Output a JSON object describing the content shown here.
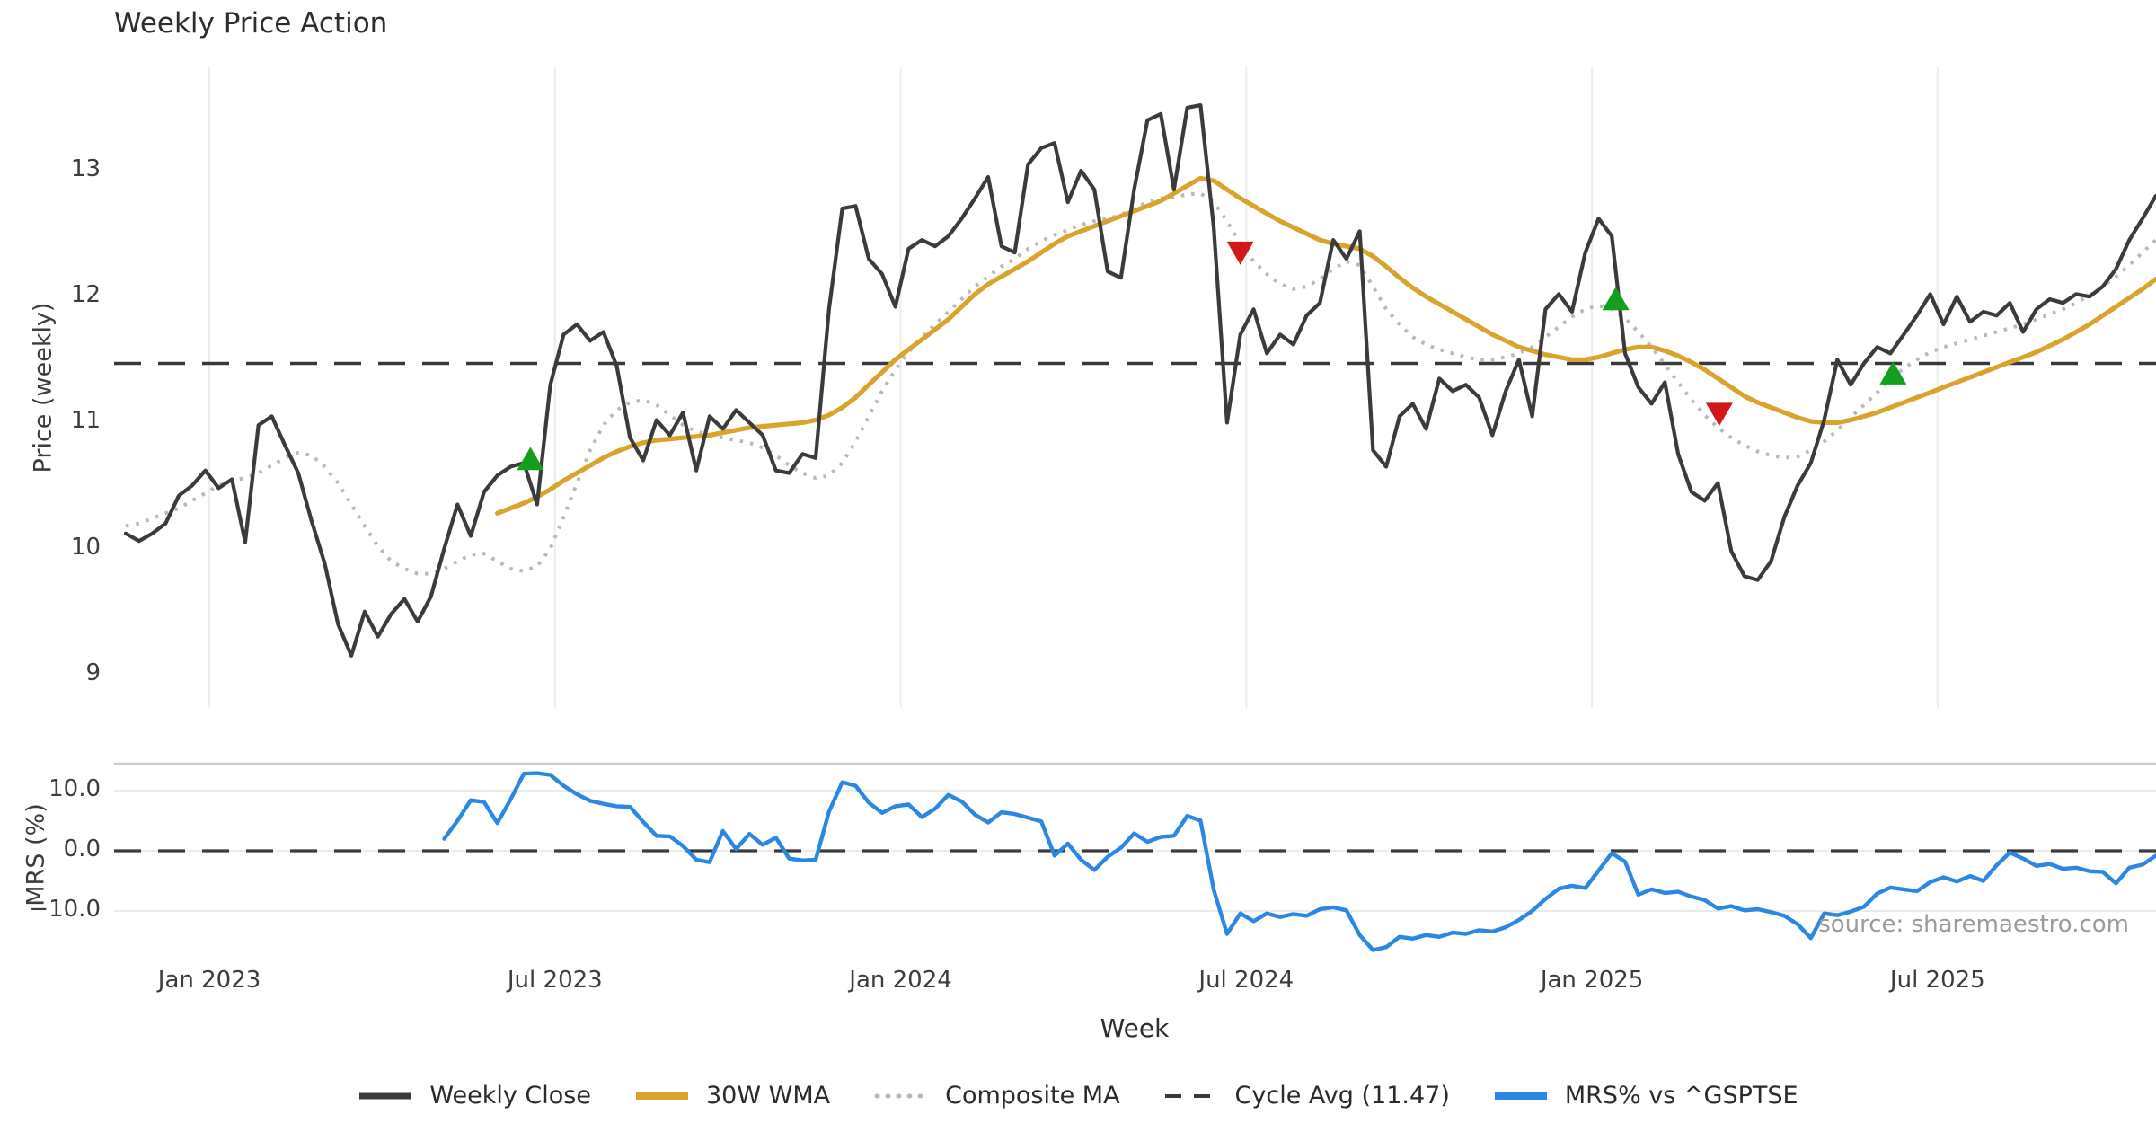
{
  "title": "Weekly Price Action",
  "xlabel": "Week",
  "source": "source: sharemaestro.com",
  "top_panel": {
    "ylabel": "Price (weekly)"
  },
  "bottom_panel": {
    "ylabel": "MRS (%)"
  },
  "legend": {
    "items": [
      {
        "label": "Weekly Close",
        "color": "#3b3b3b",
        "width": 7,
        "dash": "",
        "cap": "butt"
      },
      {
        "label": "30W WMA",
        "color": "#d9a42d",
        "width": 8,
        "dash": "",
        "cap": "butt"
      },
      {
        "label": "Composite MA",
        "color": "#b9b9b9",
        "width": 5,
        "dash": "1 11",
        "cap": "round"
      },
      {
        "label": "Cycle Avg (11.47)",
        "color": "#3a3a3a",
        "width": 4,
        "dash": "18 14",
        "cap": "butt"
      },
      {
        "label": "MRS% vs ^GSPTSE",
        "color": "#2c87e2",
        "width": 8,
        "dash": "",
        "cap": "butt"
      }
    ]
  },
  "chart_data": {
    "type": "line",
    "title": "Weekly Price Action",
    "xlabel": "Week",
    "panels": [
      {
        "ylabel": "Price (weekly)",
        "yticks": [
          9,
          10,
          11,
          12,
          13
        ],
        "ylim": [
          8.75,
          13.82
        ],
        "grid": "vertical"
      },
      {
        "ylabel": "MRS (%)",
        "yticks": [
          10.0,
          0.0,
          -10.0
        ],
        "ylim": [
          -17.0,
          14.5
        ],
        "grid": "horizontal"
      }
    ],
    "cycle_avg": 11.47,
    "mrs_zero_line": 0.0,
    "colors": {
      "close": "#3b3b3b",
      "wma": "#d9a42d",
      "composite": "#b9b9b9",
      "cycle": "#3a3a3a",
      "mrs": "#2c87e2",
      "buy": "#139e1e",
      "sell": "#d21717",
      "grid_v": "#ededed",
      "grid_h": "#ebebeb",
      "spine": "#cccccc"
    },
    "xticks": [
      {
        "label": "Jan 2023",
        "week": 6.3
      },
      {
        "label": "Jul 2023",
        "week": 32.35
      },
      {
        "label": "Jan 2024",
        "week": 58.4
      },
      {
        "label": "Jul 2024",
        "week": 84.45
      },
      {
        "label": "Jan 2025",
        "week": 110.5
      },
      {
        "label": "Jul 2025",
        "week": 136.55
      }
    ],
    "series": {
      "weekly_close": {
        "name": "Weekly Close",
        "start_week": 0,
        "values": [
          10.12,
          10.06,
          10.12,
          10.2,
          10.42,
          10.5,
          10.62,
          10.48,
          10.55,
          10.05,
          10.98,
          11.05,
          10.82,
          10.6,
          10.22,
          9.88,
          9.4,
          9.15,
          9.5,
          9.3,
          9.48,
          9.6,
          9.42,
          9.62,
          10.0,
          10.35,
          10.1,
          10.45,
          10.58,
          10.65,
          10.68,
          10.35,
          11.3,
          11.7,
          11.78,
          11.65,
          11.72,
          11.45,
          10.88,
          10.7,
          11.02,
          10.9,
          11.08,
          10.62,
          11.05,
          10.95,
          11.1,
          11.0,
          10.9,
          10.62,
          10.6,
          10.75,
          10.72,
          11.9,
          12.7,
          12.72,
          12.3,
          12.18,
          11.92,
          12.38,
          12.45,
          12.4,
          12.48,
          12.62,
          12.78,
          12.95,
          12.4,
          12.35,
          13.05,
          13.18,
          13.22,
          12.75,
          13.0,
          12.85,
          12.2,
          12.15,
          12.85,
          13.4,
          13.45,
          12.85,
          13.5,
          13.52,
          12.55,
          11.0,
          11.7,
          11.9,
          11.55,
          11.7,
          11.62,
          11.85,
          11.95,
          12.45,
          12.3,
          12.52,
          10.78,
          10.65,
          11.05,
          11.15,
          10.95,
          11.35,
          11.25,
          11.3,
          11.2,
          10.9,
          11.25,
          11.5,
          11.05,
          11.9,
          12.02,
          11.88,
          12.35,
          12.62,
          12.48,
          11.55,
          11.28,
          11.15,
          11.32,
          10.75,
          10.45,
          10.38,
          10.52,
          9.98,
          9.78,
          9.75,
          9.9,
          10.25,
          10.5,
          10.68,
          11.02,
          11.5,
          11.3,
          11.47,
          11.6,
          11.55,
          11.7,
          11.85,
          12.02,
          11.78,
          12.0,
          11.8,
          11.88,
          11.85,
          11.95,
          11.72,
          11.9,
          11.98,
          11.95,
          12.02,
          12.0,
          12.08,
          12.22,
          12.45,
          12.62,
          12.8
        ]
      },
      "wma_30w": {
        "name": "30W WMA",
        "start_week": 28,
        "values": [
          10.28,
          10.32,
          10.36,
          10.41,
          10.47,
          10.54,
          10.6,
          10.66,
          10.72,
          10.77,
          10.81,
          10.84,
          10.86,
          10.87,
          10.88,
          10.89,
          10.9,
          10.92,
          10.94,
          10.96,
          10.97,
          10.98,
          10.99,
          11.0,
          11.02,
          11.06,
          11.12,
          11.2,
          11.3,
          11.4,
          11.5,
          11.58,
          11.66,
          11.74,
          11.82,
          11.92,
          12.02,
          12.1,
          12.16,
          12.22,
          12.28,
          12.35,
          12.42,
          12.48,
          12.52,
          12.56,
          12.6,
          12.64,
          12.68,
          12.72,
          12.76,
          12.82,
          12.88,
          12.94,
          12.92,
          12.85,
          12.78,
          12.72,
          12.66,
          12.6,
          12.55,
          12.5,
          12.45,
          12.42,
          12.4,
          12.38,
          12.32,
          12.24,
          12.15,
          12.07,
          12.0,
          11.94,
          11.88,
          11.82,
          11.76,
          11.7,
          11.65,
          11.6,
          11.57,
          11.54,
          11.52,
          11.5,
          11.5,
          11.52,
          11.55,
          11.58,
          11.6,
          11.6,
          11.57,
          11.53,
          11.48,
          11.42,
          11.35,
          11.28,
          11.21,
          11.16,
          11.12,
          11.08,
          11.04,
          11.01,
          11.0,
          11.0,
          11.02,
          11.05,
          11.08,
          11.12,
          11.16,
          11.2,
          11.24,
          11.28,
          11.32,
          11.36,
          11.4,
          11.44,
          11.48,
          11.52,
          11.56,
          11.61,
          11.66,
          11.72,
          11.78,
          11.85,
          11.92,
          11.99,
          12.06,
          12.14
        ]
      },
      "composite_ma": {
        "name": "Composite MA",
        "start_week": 0,
        "values": [
          10.18,
          10.2,
          10.24,
          10.28,
          10.32,
          10.38,
          10.44,
          10.5,
          10.54,
          10.56,
          10.6,
          10.66,
          10.72,
          10.76,
          10.74,
          10.65,
          10.52,
          10.35,
          10.18,
          10.02,
          9.9,
          9.84,
          9.8,
          9.8,
          9.84,
          9.9,
          9.95,
          9.96,
          9.9,
          9.84,
          9.82,
          9.86,
          10.0,
          10.25,
          10.52,
          10.78,
          10.98,
          11.1,
          11.16,
          11.18,
          11.14,
          11.06,
          10.98,
          10.93,
          10.9,
          10.88,
          10.86,
          10.84,
          10.8,
          10.74,
          10.66,
          10.6,
          10.56,
          10.58,
          10.68,
          10.85,
          11.05,
          11.25,
          11.42,
          11.56,
          11.68,
          11.78,
          11.88,
          11.98,
          12.08,
          12.16,
          12.24,
          12.3,
          12.38,
          12.44,
          12.49,
          12.53,
          12.57,
          12.6,
          12.62,
          12.65,
          12.7,
          12.75,
          12.78,
          12.79,
          12.81,
          12.82,
          12.75,
          12.6,
          12.42,
          12.28,
          12.18,
          12.1,
          12.06,
          12.08,
          12.14,
          12.22,
          12.28,
          12.25,
          12.08,
          11.9,
          11.78,
          11.68,
          11.62,
          11.58,
          11.55,
          11.52,
          11.5,
          11.5,
          11.52,
          11.55,
          11.6,
          11.68,
          11.76,
          11.84,
          11.9,
          11.93,
          11.9,
          11.83,
          11.72,
          11.6,
          11.46,
          11.32,
          11.18,
          11.06,
          10.96,
          10.88,
          10.82,
          10.77,
          10.74,
          10.72,
          10.73,
          10.78,
          10.85,
          10.94,
          11.04,
          11.14,
          11.24,
          11.34,
          11.43,
          11.5,
          11.56,
          11.6,
          11.63,
          11.66,
          11.69,
          11.72,
          11.75,
          11.78,
          11.82,
          11.86,
          11.9,
          11.95,
          12.01,
          12.08,
          12.16,
          12.25,
          12.35,
          12.45
        ]
      },
      "mrs": {
        "name": "MRS% vs ^GSPTSE",
        "start_week": 24,
        "values": [
          2.0,
          5.0,
          8.4,
          8.1,
          4.6,
          8.5,
          12.8,
          12.9,
          12.6,
          10.8,
          9.4,
          8.3,
          7.8,
          7.4,
          7.3,
          4.8,
          2.5,
          2.4,
          0.8,
          -1.5,
          -1.9,
          3.3,
          0.3,
          2.8,
          1.0,
          2.2,
          -1.3,
          -1.6,
          -1.5,
          6.5,
          11.4,
          10.8,
          8.0,
          6.3,
          7.4,
          7.7,
          5.6,
          7.0,
          9.3,
          8.2,
          6.0,
          4.7,
          6.4,
          6.1,
          5.5,
          4.9,
          -0.8,
          1.2,
          -1.5,
          -3.2,
          -1.0,
          0.5,
          2.9,
          1.5,
          2.3,
          2.5,
          5.8,
          5.0,
          -6.5,
          -13.8,
          -10.4,
          -11.7,
          -10.4,
          -11.0,
          -10.5,
          -10.8,
          -9.7,
          -9.4,
          -9.9,
          -14.0,
          -16.5,
          -16.0,
          -14.3,
          -14.6,
          -14.0,
          -14.3,
          -13.6,
          -13.8,
          -13.2,
          -13.4,
          -12.7,
          -11.5,
          -10.0,
          -8.0,
          -6.3,
          -5.8,
          -6.2,
          -3.3,
          -0.4,
          -1.8,
          -7.3,
          -6.4,
          -7.0,
          -6.8,
          -7.6,
          -8.2,
          -9.6,
          -9.2,
          -9.9,
          -9.7,
          -10.2,
          -10.8,
          -12.2,
          -14.5,
          -10.4,
          -10.7,
          -10.1,
          -9.3,
          -7.1,
          -6.1,
          -6.4,
          -6.7,
          -5.2,
          -4.4,
          -5.1,
          -4.2,
          -5.0,
          -2.4,
          -0.3,
          -1.3,
          -2.5,
          -2.2,
          -3.0,
          -2.8,
          -3.4,
          -3.5,
          -5.4,
          -2.8,
          -2.3,
          -0.8
        ]
      }
    },
    "markers": [
      {
        "week": 30.5,
        "value": 10.7,
        "type": "buy"
      },
      {
        "week": 84.0,
        "value": 12.36,
        "type": "sell"
      },
      {
        "week": 112.3,
        "value": 11.97,
        "type": "buy"
      },
      {
        "week": 120.1,
        "value": 11.08,
        "type": "sell"
      },
      {
        "week": 133.2,
        "value": 11.38,
        "type": "buy"
      }
    ]
  }
}
